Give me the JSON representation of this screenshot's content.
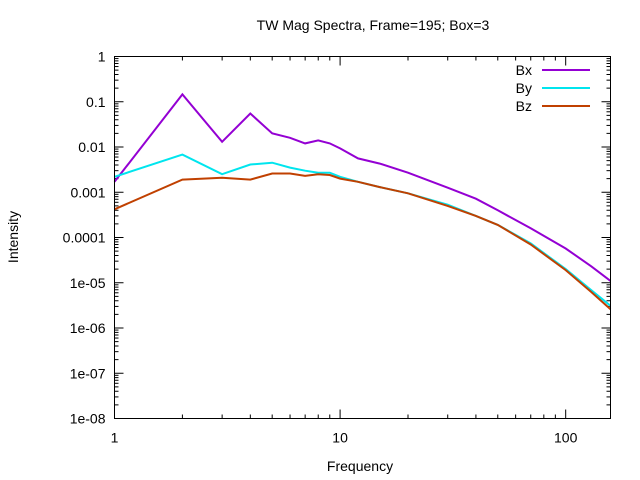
{
  "chart_data": {
    "type": "line",
    "title": "TW Mag Spectra, Frame=195; Box=3",
    "xlabel": "Frequency",
    "ylabel": "Intensity",
    "xscale": "log",
    "yscale": "log",
    "xlim": [
      1,
      158
    ],
    "ylim": [
      1e-08,
      1
    ],
    "xticks": [
      {
        "v": 1,
        "label": "1"
      },
      {
        "v": 10,
        "label": "10"
      },
      {
        "v": 100,
        "label": "100"
      }
    ],
    "yticks": [
      {
        "v": 1,
        "label": "1"
      },
      {
        "v": 0.1,
        "label": "0.1"
      },
      {
        "v": 0.01,
        "label": "0.01"
      },
      {
        "v": 0.001,
        "label": "0.001"
      },
      {
        "v": 0.0001,
        "label": "0.0001"
      },
      {
        "v": 1e-05,
        "label": "1e-05"
      },
      {
        "v": 1e-06,
        "label": "1e-06"
      },
      {
        "v": 1e-07,
        "label": "1e-07"
      },
      {
        "v": 1e-08,
        "label": "1e-08"
      }
    ],
    "grid": false,
    "legend_position": "top-right",
    "x": [
      1,
      2,
      3,
      4,
      5,
      6,
      7,
      8,
      9,
      10,
      12,
      15,
      20,
      30,
      40,
      50,
      70,
      100,
      130,
      158
    ],
    "series": [
      {
        "name": "Bx",
        "color": "#9400d3",
        "values": [
          0.0017,
          0.145,
          0.013,
          0.055,
          0.02,
          0.016,
          0.012,
          0.014,
          0.012,
          0.0093,
          0.0056,
          0.0043,
          0.0027,
          0.00126,
          0.00072,
          0.0004,
          0.00016,
          5.7e-05,
          2.3e-05,
          1.1e-05
        ]
      },
      {
        "name": "By",
        "color": "#00e5ee",
        "values": [
          0.0022,
          0.0068,
          0.0025,
          0.0041,
          0.0045,
          0.0035,
          0.003,
          0.0027,
          0.0027,
          0.0022,
          0.0017,
          0.0013,
          0.00095,
          0.00053,
          0.0003,
          0.00019,
          7.4e-05,
          2e-05,
          6.8e-06,
          3.1e-06
        ]
      },
      {
        "name": "Bz",
        "color": "#c04000",
        "values": [
          0.00042,
          0.0019,
          0.0021,
          0.0019,
          0.0026,
          0.0026,
          0.0023,
          0.0025,
          0.0024,
          0.002,
          0.0017,
          0.0013,
          0.00095,
          0.0005,
          0.0003,
          0.00019,
          7e-05,
          1.9e-05,
          6.2e-06,
          2.6e-06
        ]
      }
    ]
  }
}
